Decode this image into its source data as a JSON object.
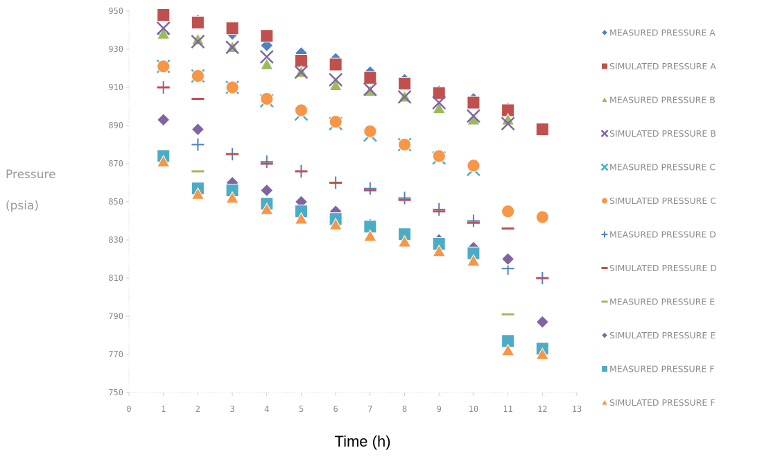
{
  "chart_data": {
    "type": "scatter",
    "title": "",
    "xlabel": "Time (h)",
    "ylabel_lines": [
      "Pressure",
      "(psia)"
    ],
    "xlim": [
      0,
      13
    ],
    "ylim": [
      750,
      950
    ],
    "x_ticks": [
      0,
      1,
      2,
      3,
      4,
      5,
      6,
      7,
      8,
      9,
      10,
      11,
      12,
      13
    ],
    "y_ticks": [
      750,
      770,
      790,
      810,
      830,
      850,
      870,
      890,
      910,
      930,
      950
    ],
    "grid": false,
    "legend_position": "right",
    "series": [
      {
        "name": "MEASURED PRESSURE A",
        "marker": "diamond",
        "color": "#4f81bd",
        "x": [
          1,
          2,
          3,
          4,
          5,
          6,
          7,
          8,
          9,
          10,
          11
        ],
        "y": [
          938,
          945,
          938,
          932,
          928,
          925,
          918,
          914,
          908,
          904,
          899
        ]
      },
      {
        "name": "SIMULATED PRESSURE A",
        "marker": "square",
        "color": "#c0504d",
        "x": [
          1,
          2,
          3,
          4,
          5,
          6,
          7,
          8,
          9,
          10,
          11,
          12
        ],
        "y": [
          948,
          944,
          941,
          937,
          924,
          922,
          915,
          912,
          907,
          902,
          898,
          888
        ]
      },
      {
        "name": "MEASURED PRESSURE B",
        "marker": "triangle",
        "color": "#9bbb59",
        "x": [
          1,
          2,
          3,
          4,
          5,
          6,
          7,
          8,
          9,
          10,
          11
        ],
        "y": [
          938,
          935,
          931,
          922,
          918,
          911,
          908,
          905,
          899,
          893,
          893
        ]
      },
      {
        "name": "SIMULATED PRESSURE B",
        "marker": "x",
        "color": "#8064a2",
        "x": [
          1,
          2,
          3,
          4,
          5,
          6,
          7,
          8,
          9,
          10,
          11
        ],
        "y": [
          941,
          934,
          931,
          926,
          918,
          914,
          909,
          905,
          902,
          895,
          891
        ]
      },
      {
        "name": "MEASURED PRESSURE C",
        "marker": "x",
        "color": "#4bacc6",
        "x": [
          1,
          2,
          3,
          4,
          5,
          6,
          7,
          8,
          9,
          10
        ],
        "y": [
          921,
          916,
          910,
          903,
          896,
          891,
          885,
          880,
          873,
          867
        ]
      },
      {
        "name": "SIMULATED PRESSURE C",
        "marker": "circle",
        "color": "#f79646",
        "x": [
          1,
          2,
          3,
          4,
          5,
          6,
          7,
          8,
          9,
          10,
          11,
          12
        ],
        "y": [
          921,
          916,
          910,
          904,
          898,
          892,
          887,
          880,
          874,
          869,
          845,
          842
        ]
      },
      {
        "name": "MEASURED PRESSURE D",
        "marker": "plus",
        "color": "#4f81bd",
        "x": [
          1,
          2,
          3,
          4,
          5,
          6,
          7,
          8,
          9,
          10,
          11,
          12
        ],
        "y": [
          910,
          880,
          875,
          871,
          866,
          860,
          857,
          852,
          846,
          840,
          815,
          810
        ]
      },
      {
        "name": "SIMULATED PRESSURE D",
        "marker": "dash",
        "color": "#c0504d",
        "x": [
          1,
          2,
          3,
          4,
          5,
          6,
          7,
          8,
          9,
          10,
          11,
          12
        ],
        "y": [
          910,
          904,
          875,
          870,
          866,
          860,
          856,
          851,
          845,
          839,
          836,
          810
        ]
      },
      {
        "name": "MEASURED PRESSURE E",
        "marker": "dash",
        "color": "#9bbb59",
        "x": [
          2,
          11
        ],
        "y": [
          866,
          791
        ]
      },
      {
        "name": "SIMULATED PRESSURE E",
        "marker": "diamond",
        "color": "#8064a2",
        "x": [
          1,
          2,
          3,
          4,
          5,
          6,
          7,
          8,
          9,
          10,
          11,
          12
        ],
        "y": [
          893,
          888,
          860,
          856,
          850,
          845,
          838,
          833,
          830,
          826,
          820,
          787
        ]
      },
      {
        "name": "MEASURED PRESSURE F",
        "marker": "square",
        "color": "#4bacc6",
        "x": [
          1,
          2,
          3,
          4,
          5,
          6,
          7,
          8,
          9,
          10,
          11,
          12
        ],
        "y": [
          874,
          857,
          856,
          849,
          845,
          841,
          837,
          833,
          828,
          823,
          777,
          773
        ]
      },
      {
        "name": "SIMULATED PRESSURE F",
        "marker": "triangle",
        "color": "#f79646",
        "x": [
          1,
          2,
          3,
          4,
          5,
          6,
          7,
          8,
          9,
          10,
          11,
          12
        ],
        "y": [
          871,
          854,
          852,
          846,
          841,
          838,
          832,
          829,
          824,
          819,
          772,
          770
        ]
      }
    ]
  }
}
